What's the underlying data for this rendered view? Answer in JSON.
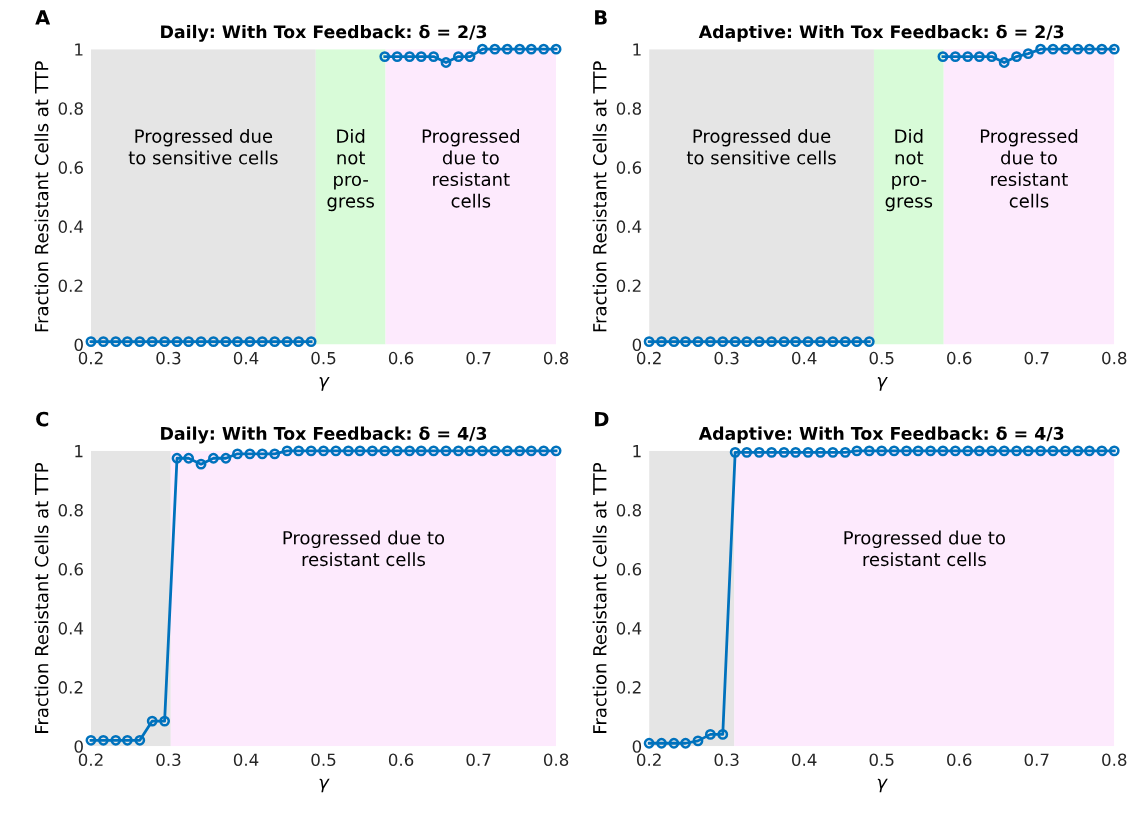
{
  "chart_data": [
    {
      "type": "line",
      "title": "Daily: With Tox Feedback: δ = 2/3",
      "xlabel": "γ",
      "ylabel": "Fraction Resistant Cells at TTP",
      "annotations": [
        "A"
      ],
      "x": [
        0.2,
        0.216,
        0.232,
        0.247,
        0.263,
        0.279,
        0.295,
        0.311,
        0.326,
        0.342,
        0.358,
        0.374,
        0.389,
        0.405,
        0.421,
        0.437,
        0.453,
        0.468,
        0.484,
        0.5,
        0.516,
        0.532,
        0.547,
        0.563,
        0.579,
        0.595,
        0.611,
        0.626,
        0.642,
        0.658,
        0.674,
        0.689,
        0.705,
        0.721,
        0.737,
        0.753,
        0.768,
        0.784,
        0.8
      ],
      "series": [
        {
          "color": "#0072bd",
          "values": [
            0.01,
            0.01,
            0.01,
            0.01,
            0.01,
            0.01,
            0.01,
            0.01,
            0.01,
            0.01,
            0.01,
            0.01,
            0.01,
            0.01,
            0.01,
            0.01,
            0.01,
            0.01,
            0.01,
            null,
            null,
            null,
            null,
            null,
            0.975,
            0.975,
            0.975,
            0.975,
            0.975,
            0.955,
            0.975,
            0.975,
            1.0,
            1.0,
            1.0,
            1.0,
            1.0,
            1.0,
            1.0
          ]
        }
      ],
      "bands": [
        {
          "axis": "x",
          "from": 0.2,
          "to": 0.49,
          "label": "Progressed due\nto sensitive cells",
          "color": "#e5e5e5"
        },
        {
          "axis": "x",
          "from": 0.49,
          "to": 0.58,
          "label": "Did\nnot\npro-\ngress",
          "color": "#d8fbd8"
        },
        {
          "axis": "x",
          "from": 0.58,
          "to": 0.8,
          "label": "Progressed\ndue to\nresistant\ncells",
          "color": "#fdeafd"
        }
      ],
      "xlim": [
        0.2,
        0.8
      ],
      "ylim": [
        0,
        1
      ],
      "xticks": [
        0.2,
        0.3,
        0.4,
        0.5,
        0.6,
        0.7,
        0.8
      ],
      "yticks": [
        0,
        0.2,
        0.4,
        0.6,
        0.8,
        1
      ],
      "marker": "circle",
      "line_style": "solid",
      "grid": false
    },
    {
      "type": "line",
      "title": "Adaptive: With Tox Feedback: δ = 2/3",
      "xlabel": "γ",
      "ylabel": "Fraction Resistant Cells at TTP",
      "annotations": [
        "B"
      ],
      "x": [
        0.2,
        0.216,
        0.232,
        0.247,
        0.263,
        0.279,
        0.295,
        0.311,
        0.326,
        0.342,
        0.358,
        0.374,
        0.389,
        0.405,
        0.421,
        0.437,
        0.453,
        0.468,
        0.484,
        0.5,
        0.516,
        0.532,
        0.547,
        0.563,
        0.579,
        0.595,
        0.611,
        0.626,
        0.642,
        0.658,
        0.674,
        0.689,
        0.705,
        0.721,
        0.737,
        0.753,
        0.768,
        0.784,
        0.8
      ],
      "series": [
        {
          "color": "#0072bd",
          "values": [
            0.01,
            0.01,
            0.01,
            0.01,
            0.01,
            0.01,
            0.01,
            0.01,
            0.01,
            0.01,
            0.01,
            0.01,
            0.01,
            0.01,
            0.01,
            0.01,
            0.01,
            0.01,
            0.01,
            null,
            null,
            null,
            null,
            null,
            0.975,
            0.975,
            0.975,
            0.975,
            0.975,
            0.955,
            0.975,
            0.985,
            1.0,
            1.0,
            1.0,
            1.0,
            1.0,
            1.0,
            1.0
          ]
        }
      ],
      "bands": [
        {
          "axis": "x",
          "from": 0.2,
          "to": 0.49,
          "label": "Progressed due\nto sensitive cells",
          "color": "#e5e5e5"
        },
        {
          "axis": "x",
          "from": 0.49,
          "to": 0.58,
          "label": "Did\nnot\npro-\ngress",
          "color": "#d8fbd8"
        },
        {
          "axis": "x",
          "from": 0.58,
          "to": 0.8,
          "label": "Progressed\ndue to\nresistant\ncells",
          "color": "#fdeafd"
        }
      ],
      "xlim": [
        0.2,
        0.8
      ],
      "ylim": [
        0,
        1
      ],
      "xticks": [
        0.2,
        0.3,
        0.4,
        0.5,
        0.6,
        0.7,
        0.8
      ],
      "yticks": [
        0,
        0.2,
        0.4,
        0.6,
        0.8,
        1
      ],
      "marker": "circle",
      "line_style": "solid",
      "grid": false
    },
    {
      "type": "line",
      "title": "Daily: With Tox Feedback: δ = 4/3",
      "xlabel": "γ",
      "ylabel": "Fraction Resistant Cells at TTP",
      "annotations": [
        "C"
      ],
      "x": [
        0.2,
        0.216,
        0.232,
        0.247,
        0.263,
        0.279,
        0.295,
        0.311,
        0.326,
        0.342,
        0.358,
        0.374,
        0.389,
        0.405,
        0.421,
        0.437,
        0.453,
        0.468,
        0.484,
        0.5,
        0.516,
        0.532,
        0.547,
        0.563,
        0.579,
        0.595,
        0.611,
        0.626,
        0.642,
        0.658,
        0.674,
        0.689,
        0.705,
        0.721,
        0.737,
        0.753,
        0.768,
        0.784,
        0.8
      ],
      "series": [
        {
          "color": "#0072bd",
          "values": [
            0.02,
            0.02,
            0.02,
            0.02,
            0.02,
            0.085,
            0.085,
            0.975,
            0.975,
            0.955,
            0.975,
            0.975,
            0.99,
            0.99,
            0.99,
            0.99,
            1.0,
            1.0,
            1.0,
            1.0,
            1.0,
            1.0,
            1.0,
            1.0,
            1.0,
            1.0,
            1.0,
            1.0,
            1.0,
            1.0,
            1.0,
            1.0,
            1.0,
            1.0,
            1.0,
            1.0,
            1.0,
            1.0,
            1.0
          ]
        }
      ],
      "bands": [
        {
          "axis": "x",
          "from": 0.2,
          "to": 0.303,
          "color": "#e5e5e5"
        },
        {
          "axis": "x",
          "from": 0.303,
          "to": 0.8,
          "label": "Progressed due to\nresistant cells",
          "color": "#fdeafd"
        }
      ],
      "xlim": [
        0.2,
        0.8
      ],
      "ylim": [
        0,
        1
      ],
      "xticks": [
        0.2,
        0.3,
        0.4,
        0.5,
        0.6,
        0.7,
        0.8
      ],
      "yticks": [
        0,
        0.2,
        0.4,
        0.6,
        0.8,
        1
      ],
      "marker": "circle",
      "line_style": "solid",
      "grid": false
    },
    {
      "type": "line",
      "title": "Adaptive: With Tox Feedback: δ = 4/3",
      "xlabel": "γ",
      "ylabel": "Fraction Resistant Cells at TTP",
      "annotations": [
        "D"
      ],
      "x": [
        0.2,
        0.216,
        0.232,
        0.247,
        0.263,
        0.279,
        0.295,
        0.311,
        0.326,
        0.342,
        0.358,
        0.374,
        0.389,
        0.405,
        0.421,
        0.437,
        0.453,
        0.468,
        0.484,
        0.5,
        0.516,
        0.532,
        0.547,
        0.563,
        0.579,
        0.595,
        0.611,
        0.626,
        0.642,
        0.658,
        0.674,
        0.689,
        0.705,
        0.721,
        0.737,
        0.753,
        0.768,
        0.784,
        0.8
      ],
      "series": [
        {
          "color": "#0072bd",
          "values": [
            0.01,
            0.01,
            0.01,
            0.01,
            0.018,
            0.04,
            0.04,
            0.995,
            0.995,
            0.995,
            0.995,
            0.995,
            0.995,
            0.995,
            0.995,
            0.995,
            0.995,
            1.0,
            1.0,
            1.0,
            1.0,
            1.0,
            1.0,
            1.0,
            1.0,
            1.0,
            1.0,
            1.0,
            1.0,
            1.0,
            1.0,
            1.0,
            1.0,
            1.0,
            1.0,
            1.0,
            1.0,
            1.0,
            1.0
          ]
        }
      ],
      "bands": [
        {
          "axis": "x",
          "from": 0.2,
          "to": 0.31,
          "color": "#e5e5e5"
        },
        {
          "axis": "x",
          "from": 0.31,
          "to": 0.8,
          "label": "Progressed due to\nresistant cells",
          "color": "#fdeafd"
        }
      ],
      "xlim": [
        0.2,
        0.8
      ],
      "ylim": [
        0,
        1
      ],
      "xticks": [
        0.2,
        0.3,
        0.4,
        0.5,
        0.6,
        0.7,
        0.8
      ],
      "yticks": [
        0,
        0.2,
        0.4,
        0.6,
        0.8,
        1
      ],
      "marker": "circle",
      "line_style": "solid",
      "grid": false
    }
  ]
}
